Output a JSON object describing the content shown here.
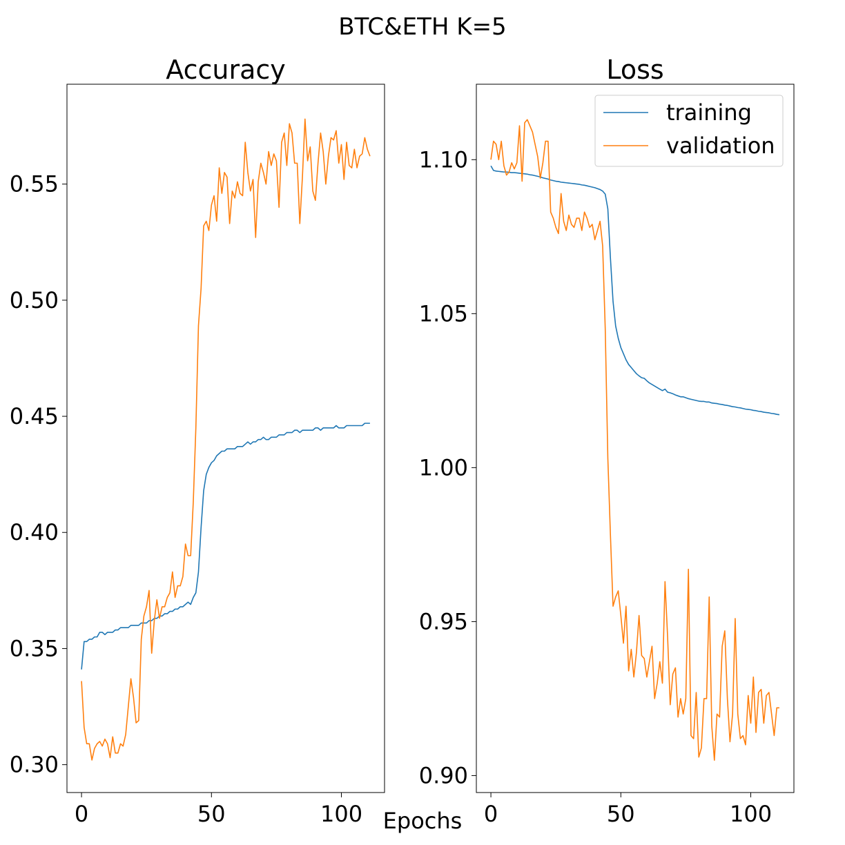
{
  "figure": {
    "suptitle": "BTC&ETH K=5",
    "xlabel": "Epochs"
  },
  "colors": {
    "training": "#1f77b4",
    "validation": "#ff7f0e",
    "axes": "#000000"
  },
  "chart_data": [
    {
      "type": "line",
      "title": "Accuracy",
      "xlabel": "",
      "ylabel": "",
      "xlim": [
        -5.6,
        116.6
      ],
      "ylim": [
        0.288,
        0.593
      ],
      "xticks": [
        0,
        50,
        100
      ],
      "xtick_labels": [
        "0",
        "50",
        "100"
      ],
      "yticks": [
        0.3,
        0.35,
        0.4,
        0.45,
        0.5,
        0.55
      ],
      "ytick_labels": [
        "0.30",
        "0.35",
        "0.40",
        "0.45",
        "0.50",
        "0.55"
      ],
      "grid": false,
      "legend": null,
      "series": [
        {
          "key": "training",
          "values": [
            0.341,
            0.353,
            0.353,
            0.354,
            0.354,
            0.355,
            0.355,
            0.357,
            0.357,
            0.356,
            0.357,
            0.357,
            0.357,
            0.358,
            0.358,
            0.359,
            0.359,
            0.359,
            0.359,
            0.36,
            0.36,
            0.36,
            0.36,
            0.361,
            0.361,
            0.361,
            0.362,
            0.362,
            0.363,
            0.363,
            0.364,
            0.364,
            0.365,
            0.365,
            0.366,
            0.366,
            0.367,
            0.367,
            0.368,
            0.368,
            0.369,
            0.37,
            0.369,
            0.372,
            0.374,
            0.383,
            0.402,
            0.418,
            0.425,
            0.428,
            0.43,
            0.431,
            0.433,
            0.434,
            0.435,
            0.435,
            0.436,
            0.436,
            0.436,
            0.436,
            0.437,
            0.437,
            0.437,
            0.438,
            0.439,
            0.438,
            0.439,
            0.439,
            0.44,
            0.44,
            0.441,
            0.44,
            0.44,
            0.441,
            0.441,
            0.441,
            0.442,
            0.442,
            0.442,
            0.443,
            0.443,
            0.443,
            0.444,
            0.444,
            0.443,
            0.444,
            0.444,
            0.444,
            0.444,
            0.444,
            0.445,
            0.445,
            0.444,
            0.445,
            0.445,
            0.445,
            0.445,
            0.445,
            0.446,
            0.445,
            0.445,
            0.445,
            0.446,
            0.446,
            0.446,
            0.446,
            0.446,
            0.446,
            0.446,
            0.447,
            0.447,
            0.447
          ]
        },
        {
          "key": "validation",
          "values": [
            0.336,
            0.316,
            0.309,
            0.309,
            0.302,
            0.307,
            0.309,
            0.31,
            0.308,
            0.311,
            0.309,
            0.303,
            0.312,
            0.305,
            0.305,
            0.309,
            0.308,
            0.313,
            0.325,
            0.337,
            0.329,
            0.318,
            0.319,
            0.354,
            0.364,
            0.368,
            0.375,
            0.348,
            0.362,
            0.371,
            0.363,
            0.368,
            0.368,
            0.372,
            0.374,
            0.383,
            0.372,
            0.377,
            0.377,
            0.381,
            0.395,
            0.39,
            0.39,
            0.413,
            0.445,
            0.489,
            0.505,
            0.532,
            0.534,
            0.53,
            0.541,
            0.545,
            0.534,
            0.557,
            0.546,
            0.555,
            0.553,
            0.533,
            0.547,
            0.544,
            0.551,
            0.546,
            0.545,
            0.568,
            0.555,
            0.547,
            0.552,
            0.527,
            0.551,
            0.559,
            0.555,
            0.55,
            0.564,
            0.558,
            0.563,
            0.56,
            0.54,
            0.568,
            0.572,
            0.558,
            0.576,
            0.572,
            0.559,
            0.559,
            0.533,
            0.553,
            0.578,
            0.56,
            0.566,
            0.547,
            0.543,
            0.559,
            0.572,
            0.564,
            0.55,
            0.562,
            0.57,
            0.569,
            0.573,
            0.559,
            0.567,
            0.552,
            0.568,
            0.558,
            0.557,
            0.565,
            0.557,
            0.562,
            0.563,
            0.57,
            0.565,
            0.562
          ]
        }
      ]
    },
    {
      "type": "line",
      "title": "Loss",
      "xlabel": "",
      "ylabel": "",
      "xlim": [
        -5.6,
        116.6
      ],
      "ylim": [
        0.8945,
        1.1245
      ],
      "xticks": [
        0,
        50,
        100
      ],
      "xtick_labels": [
        "0",
        "50",
        "100"
      ],
      "yticks": [
        0.9,
        0.95,
        1.0,
        1.05,
        1.1
      ],
      "ytick_labels": [
        "0.90",
        "0.95",
        "1.00",
        "1.05",
        "1.10"
      ],
      "grid": false,
      "legend": {
        "position": "upper right",
        "entries": [
          {
            "key": "training",
            "label": "training"
          },
          {
            "key": "validation",
            "label": "validation"
          }
        ]
      },
      "series": [
        {
          "key": "training",
          "values": [
            1.098,
            1.0965,
            1.0963,
            1.0962,
            1.0961,
            1.096,
            1.096,
            1.0959,
            1.0958,
            1.0958,
            1.0957,
            1.0956,
            1.0955,
            1.0954,
            1.0953,
            1.0951,
            1.095,
            1.0948,
            1.0946,
            1.0944,
            1.0941,
            1.0939,
            1.0937,
            1.0934,
            1.0932,
            1.093,
            1.0929,
            1.0927,
            1.0926,
            1.0925,
            1.0924,
            1.0923,
            1.0922,
            1.0921,
            1.092,
            1.0918,
            1.0917,
            1.0915,
            1.0913,
            1.0911,
            1.0909,
            1.0906,
            1.0903,
            1.0898,
            1.0888,
            1.084,
            1.068,
            1.054,
            1.046,
            1.042,
            1.039,
            1.037,
            1.035,
            1.0335,
            1.0325,
            1.0315,
            1.0305,
            1.0298,
            1.0292,
            1.029,
            1.0282,
            1.0275,
            1.027,
            1.0265,
            1.026,
            1.0255,
            1.025,
            1.0255,
            1.0245,
            1.0243,
            1.024,
            1.0236,
            1.0233,
            1.023,
            1.023,
            1.0227,
            1.0224,
            1.0222,
            1.022,
            1.0218,
            1.0216,
            1.0215,
            1.0215,
            1.0213,
            1.0213,
            1.021,
            1.0209,
            1.0208,
            1.0206,
            1.0205,
            1.0203,
            1.0202,
            1.02,
            1.0198,
            1.0197,
            1.0195,
            1.0194,
            1.0192,
            1.019,
            1.0189,
            1.0188,
            1.0186,
            1.0185,
            1.0183,
            1.0182,
            1.018,
            1.0179,
            1.0178,
            1.0176,
            1.0175,
            1.0173,
            1.0172
          ]
        },
        {
          "key": "validation",
          "values": [
            1.1,
            1.106,
            1.105,
            1.1,
            1.106,
            1.098,
            1.095,
            1.096,
            1.099,
            1.097,
            1.099,
            1.111,
            1.093,
            1.112,
            1.113,
            1.111,
            1.109,
            1.105,
            1.101,
            1.094,
            1.099,
            1.106,
            1.106,
            1.083,
            1.081,
            1.078,
            1.076,
            1.089,
            1.08,
            1.077,
            1.082,
            1.079,
            1.078,
            1.081,
            1.081,
            1.077,
            1.083,
            1.081,
            1.078,
            1.079,
            1.074,
            1.077,
            1.08,
            1.072,
            1.045,
            1.003,
            0.978,
            0.955,
            0.958,
            0.96,
            0.952,
            0.943,
            0.955,
            0.934,
            0.941,
            0.932,
            0.94,
            0.952,
            0.939,
            0.938,
            0.932,
            0.937,
            0.942,
            0.925,
            0.93,
            0.937,
            0.93,
            0.963,
            0.945,
            0.923,
            0.933,
            0.935,
            0.919,
            0.925,
            0.92,
            0.925,
            0.967,
            0.913,
            0.912,
            0.927,
            0.906,
            0.909,
            0.925,
            0.925,
            0.958,
            0.916,
            0.905,
            0.92,
            0.919,
            0.942,
            0.947,
            0.925,
            0.911,
            0.92,
            0.951,
            0.92,
            0.912,
            0.913,
            0.91,
            0.926,
            0.917,
            0.932,
            0.914,
            0.927,
            0.928,
            0.917,
            0.926,
            0.927,
            0.92,
            0.913,
            0.922,
            0.922
          ]
        }
      ]
    }
  ]
}
